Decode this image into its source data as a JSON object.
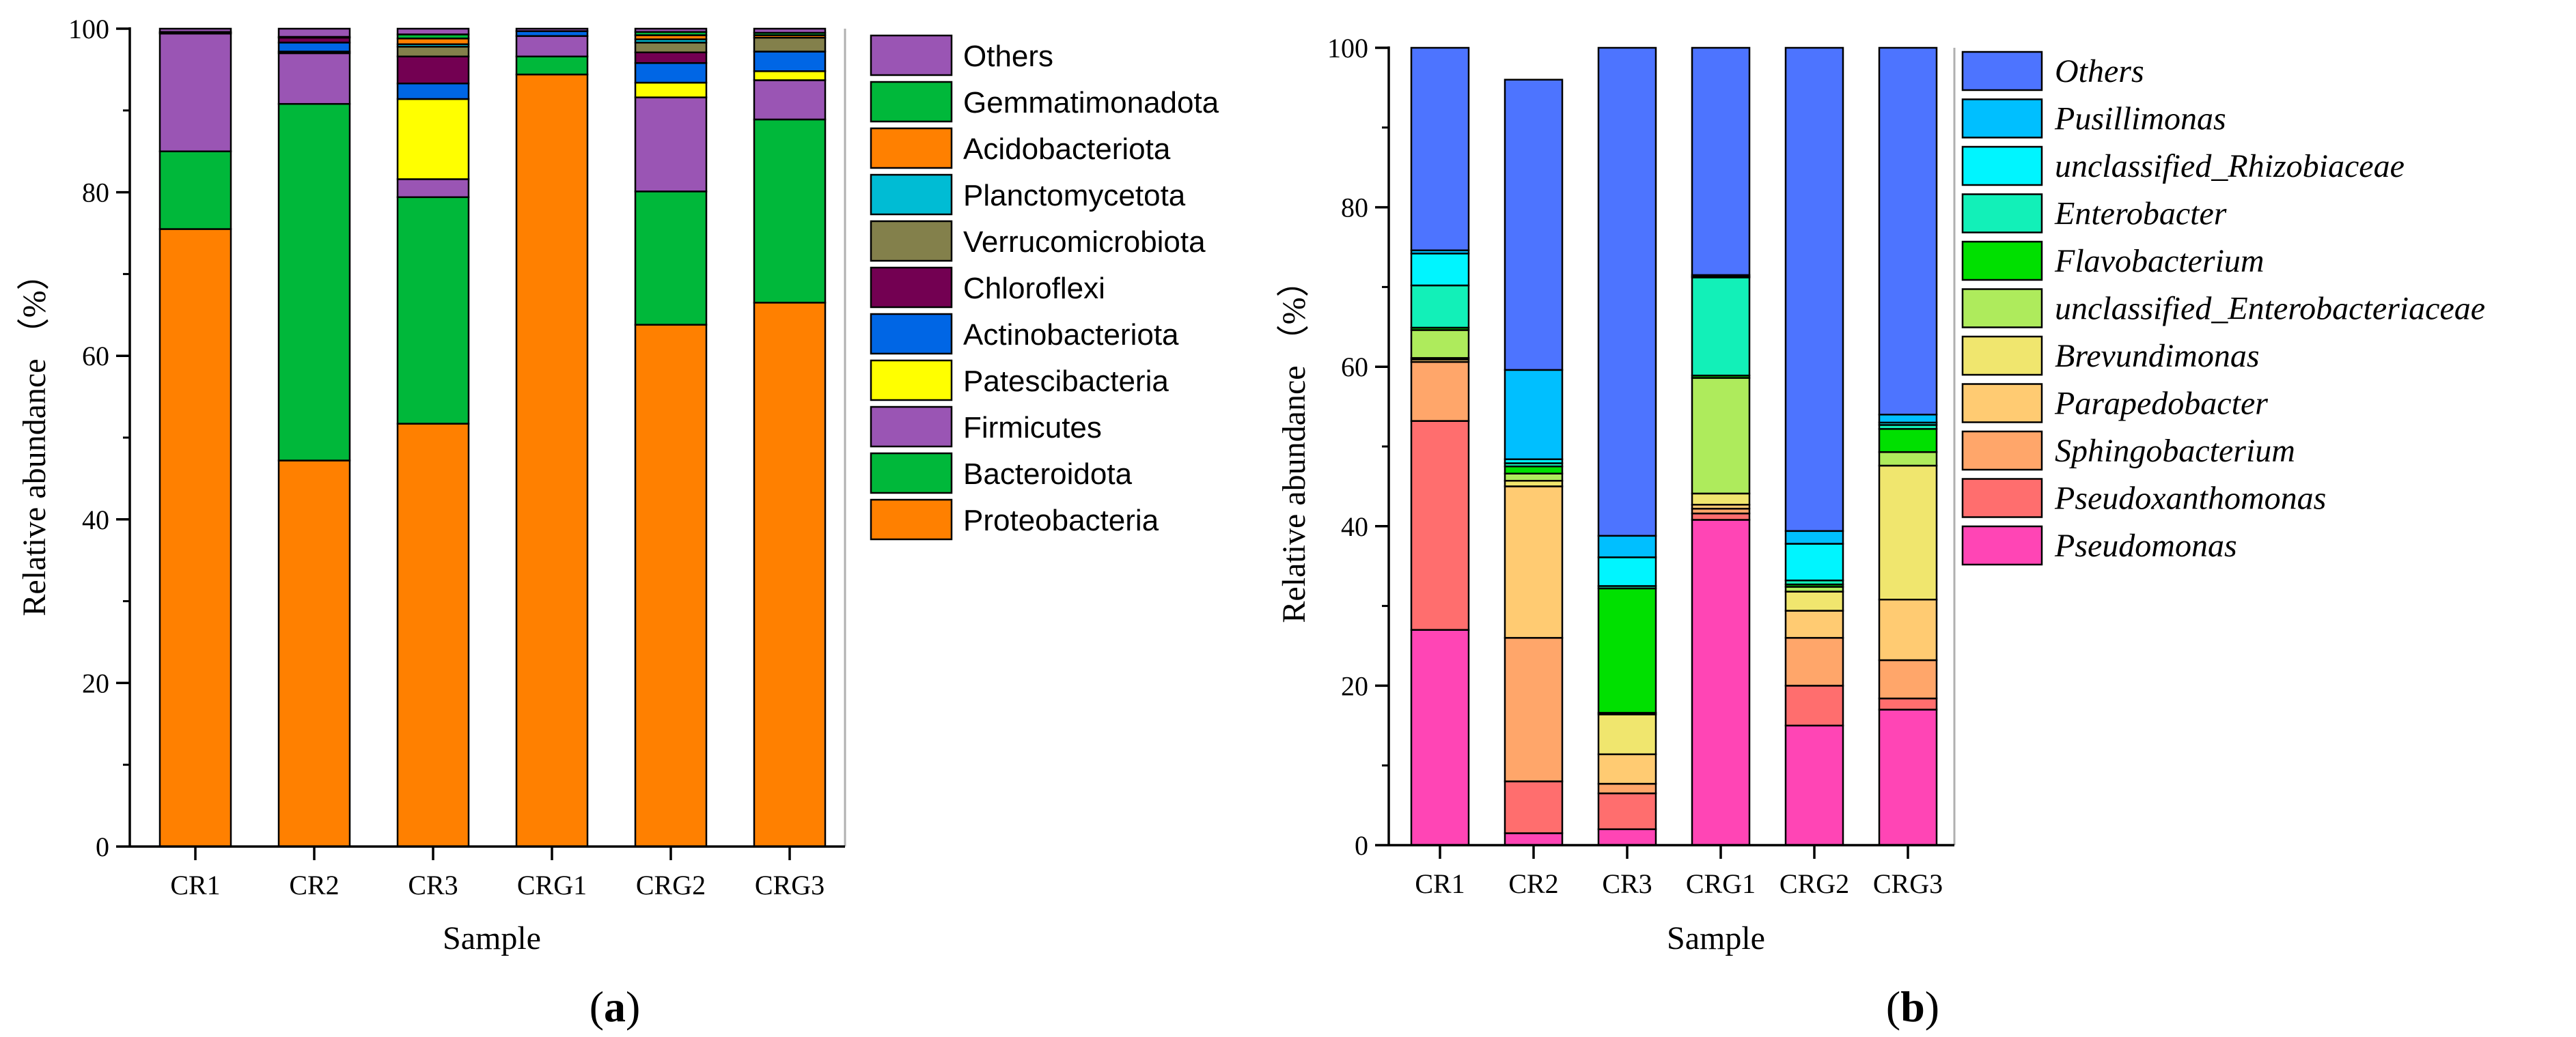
{
  "chart_data": [
    {
      "type": "bar",
      "stacked": true,
      "panel_label_open": "(",
      "panel_label_letter": "a",
      "panel_label_close": ")",
      "xlabel": "Sample",
      "ylabel": "Relative abundance （%）",
      "ylim": [
        0,
        100
      ],
      "yticks": [
        0,
        20,
        40,
        60,
        80,
        100
      ],
      "categories": [
        "CR1",
        "CR2",
        "CR3",
        "CRG1",
        "CRG2",
        "CRG3"
      ],
      "legend_italic": false,
      "legend_position": "right",
      "series": [
        {
          "name": "Proteobacteria",
          "color": "#FF8000",
          "values": [
            75.5,
            47.2,
            51.7,
            94.4,
            63.8,
            66.5
          ]
        },
        {
          "name": "Bacteroidota",
          "color": "#00B83A",
          "values": [
            9.5,
            43.6,
            27.7,
            2.2,
            16.3,
            22.4
          ]
        },
        {
          "name": "Firmicutes",
          "color": "#9A55B4",
          "values": [
            14.4,
            6.2,
            2.2,
            2.5,
            11.5,
            4.8
          ]
        },
        {
          "name": "Patescibacteria",
          "color": "#FFFF00",
          "values": [
            0.0,
            0.2,
            9.8,
            0.0,
            1.8,
            1.1
          ]
        },
        {
          "name": "Actinobacteriota",
          "color": "#0066E5",
          "values": [
            0.1,
            1.1,
            1.9,
            0.6,
            2.4,
            2.4
          ]
        },
        {
          "name": "Chloroflexi",
          "color": "#730052",
          "values": [
            0.1,
            0.6,
            3.3,
            0.0,
            1.3,
            0.0
          ]
        },
        {
          "name": "Verrucomicrobiota",
          "color": "#83804B",
          "values": [
            0.0,
            0.1,
            1.2,
            0.0,
            1.2,
            1.7
          ]
        },
        {
          "name": "Planctomycetota",
          "color": "#00BCD4",
          "values": [
            0.0,
            0.0,
            0.3,
            0.0,
            0.4,
            0.0
          ]
        },
        {
          "name": "Acidobacteriota",
          "color": "#FF8000",
          "values": [
            0.0,
            0.0,
            0.7,
            0.0,
            0.5,
            0.3
          ]
        },
        {
          "name": "Gemmatimonadota",
          "color": "#00B83A",
          "values": [
            0.0,
            0.0,
            0.5,
            0.0,
            0.4,
            0.3
          ]
        },
        {
          "name": "Others",
          "color": "#9A55B4",
          "values": [
            0.4,
            1.0,
            0.7,
            0.3,
            0.4,
            0.5
          ]
        }
      ]
    },
    {
      "type": "bar",
      "stacked": true,
      "panel_label_open": "(",
      "panel_label_letter": "b",
      "panel_label_close": ")",
      "xlabel": "Sample",
      "ylabel": "Relative abundance （%）",
      "ylim": [
        0,
        100
      ],
      "yticks": [
        0,
        20,
        40,
        60,
        80,
        100
      ],
      "categories": [
        "CR1",
        "CR2",
        "CR3",
        "CRG1",
        "CRG2",
        "CRG3"
      ],
      "legend_italic": true,
      "legend_position": "right",
      "series": [
        {
          "name": "Pseudomonas",
          "color": "#FF45B5",
          "values": [
            27.0,
            1.5,
            2.0,
            40.8,
            15.0,
            17.0
          ]
        },
        {
          "name": "Pseudoxanthomonas",
          "color": "#FF6E6E",
          "values": [
            26.2,
            6.5,
            4.5,
            0.8,
            5.0,
            1.4
          ]
        },
        {
          "name": "Sphingobacterium",
          "color": "#FFA66A",
          "values": [
            7.4,
            18.0,
            1.2,
            0.6,
            6.0,
            4.8
          ]
        },
        {
          "name": "Parapedobacter",
          "color": "#FFCB72",
          "values": [
            0.3,
            19.0,
            3.7,
            0.5,
            3.4,
            7.6
          ]
        },
        {
          "name": "Brevundimonas",
          "color": "#F0E66E",
          "values": [
            0.2,
            0.7,
            5.0,
            1.4,
            2.4,
            16.8
          ]
        },
        {
          "name": "unclassified_Enterobacteriaceae",
          "color": "#AEEB5C",
          "values": [
            3.5,
            0.9,
            0.2,
            14.5,
            0.6,
            1.7
          ]
        },
        {
          "name": "Flavobacterium",
          "color": "#00E000",
          "values": [
            0.3,
            0.9,
            15.6,
            0.3,
            0.3,
            2.9
          ]
        },
        {
          "name": "Enterobacter",
          "color": "#12F0B8",
          "values": [
            5.3,
            0.4,
            0.3,
            12.3,
            0.5,
            0.5
          ]
        },
        {
          "name": "unclassified_Rhizobiaceae",
          "color": "#00F5FF",
          "values": [
            4.0,
            0.5,
            3.6,
            0.1,
            4.6,
            0.3
          ]
        },
        {
          "name": "Pusillimonas",
          "color": "#00BFFF",
          "values": [
            0.4,
            11.2,
            2.7,
            0.2,
            1.6,
            1.0
          ]
        },
        {
          "name": "Others",
          "color": "#4D74FF",
          "values": [
            25.4,
            36.4,
            61.2,
            28.5,
            60.6,
            46.0
          ]
        }
      ]
    }
  ]
}
